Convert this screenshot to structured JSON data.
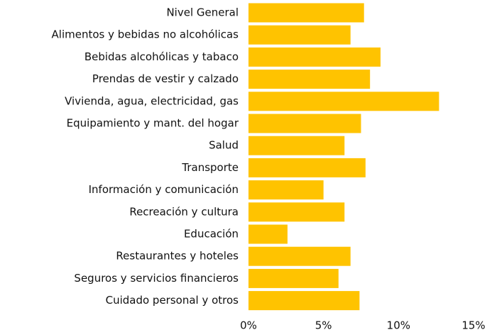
{
  "chart_data": {
    "type": "bar",
    "orientation": "horizontal",
    "categories": [
      "Nivel General",
      "Alimentos y bebidas no alcohólicas",
      "Bebidas alcohólicas y tabaco",
      "Prendas de vestir y calzado",
      "Vivienda, agua, electricidad, gas",
      "Equipamiento y mant. del hogar",
      "Salud",
      "Transporte",
      "Información y comunicación",
      "Recreación y cultura",
      "Educación",
      "Restaurantes y hoteles",
      "Seguros y servicios financieros",
      "Cuidado personal y otros"
    ],
    "values": [
      7.7,
      6.8,
      8.8,
      8.1,
      12.7,
      7.5,
      6.4,
      7.8,
      5.0,
      6.4,
      2.6,
      6.8,
      6.0,
      7.4
    ],
    "color": "#ffc300",
    "xlim": [
      0,
      15
    ],
    "xticks": [
      {
        "value": 0,
        "label": "0%"
      },
      {
        "value": 5,
        "label": "5%"
      },
      {
        "value": 10,
        "label": "10%"
      },
      {
        "value": 15,
        "label": "15%"
      }
    ],
    "grid": false
  }
}
